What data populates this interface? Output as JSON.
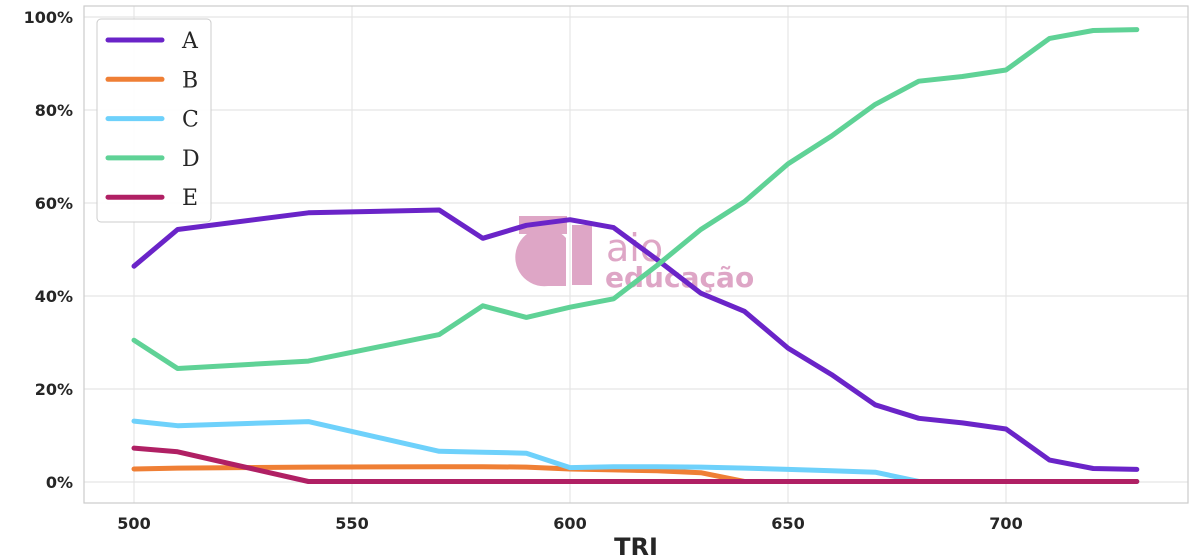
{
  "chart_data": {
    "type": "line",
    "title": "",
    "xlabel": "TRI",
    "ylabel": "",
    "xlim": [
      489,
      1752
    ],
    "ylim": [
      -0.05,
      1.01
    ],
    "x_ticks": [
      500,
      550,
      600,
      650,
      700
    ],
    "y_ticks": [
      0,
      0.2,
      0.4,
      0.6,
      0.8,
      1.0
    ],
    "y_tick_labels": [
      "0%",
      "20%",
      "40%",
      "60%",
      "80%",
      "100%"
    ],
    "grid": true,
    "legend": "top-left",
    "x": [
      500,
      510,
      540,
      570,
      580,
      590,
      600,
      610,
      620,
      630,
      640,
      650,
      660,
      670,
      680,
      690,
      700,
      710,
      720,
      730
    ],
    "series": [
      {
        "name": "A",
        "color": "#6a24c8",
        "values": [
          0.464,
          0.543,
          0.579,
          0.585,
          0.524,
          0.552,
          0.564,
          0.547,
          0.478,
          0.406,
          0.367,
          0.288,
          0.231,
          0.166,
          0.137,
          0.127,
          0.114,
          0.047,
          0.029,
          0.027
        ]
      },
      {
        "name": "B",
        "color": "#ef7f35",
        "values": [
          0.028,
          0.03,
          0.032,
          0.033,
          0.033,
          0.032,
          0.028,
          0.026,
          0.024,
          0.02,
          0.001,
          0.001,
          0.001,
          0.001,
          0.001,
          0.001,
          0.001,
          0.001,
          0.001,
          0.001
        ]
      },
      {
        "name": "C",
        "color": "#6ed1fb",
        "values": [
          0.131,
          0.121,
          0.13,
          0.066,
          0.064,
          0.062,
          0.031,
          0.033,
          0.033,
          0.032,
          0.03,
          0.027,
          0.024,
          0.021,
          0.001,
          0.001,
          0.001,
          0.001,
          0.001,
          0.001
        ]
      },
      {
        "name": "D",
        "color": "#5fd296",
        "values": [
          0.305,
          0.244,
          0.26,
          0.317,
          0.379,
          0.354,
          0.376,
          0.394,
          0.466,
          0.543,
          0.603,
          0.684,
          0.744,
          0.812,
          0.862,
          0.872,
          0.886,
          0.954,
          0.971,
          0.973
        ]
      },
      {
        "name": "E",
        "color": "#b02064",
        "values": [
          0.073,
          0.065,
          0.001,
          0.001,
          0.001,
          0.001,
          0.001,
          0.001,
          0.001,
          0.001,
          0.001,
          0.001,
          0.001,
          0.001,
          0.001,
          0.001,
          0.001,
          0.001,
          0.001,
          0.001
        ]
      }
    ]
  },
  "watermark": {
    "brand": "aio",
    "tagline": "educação",
    "color": "#dea6c6"
  }
}
